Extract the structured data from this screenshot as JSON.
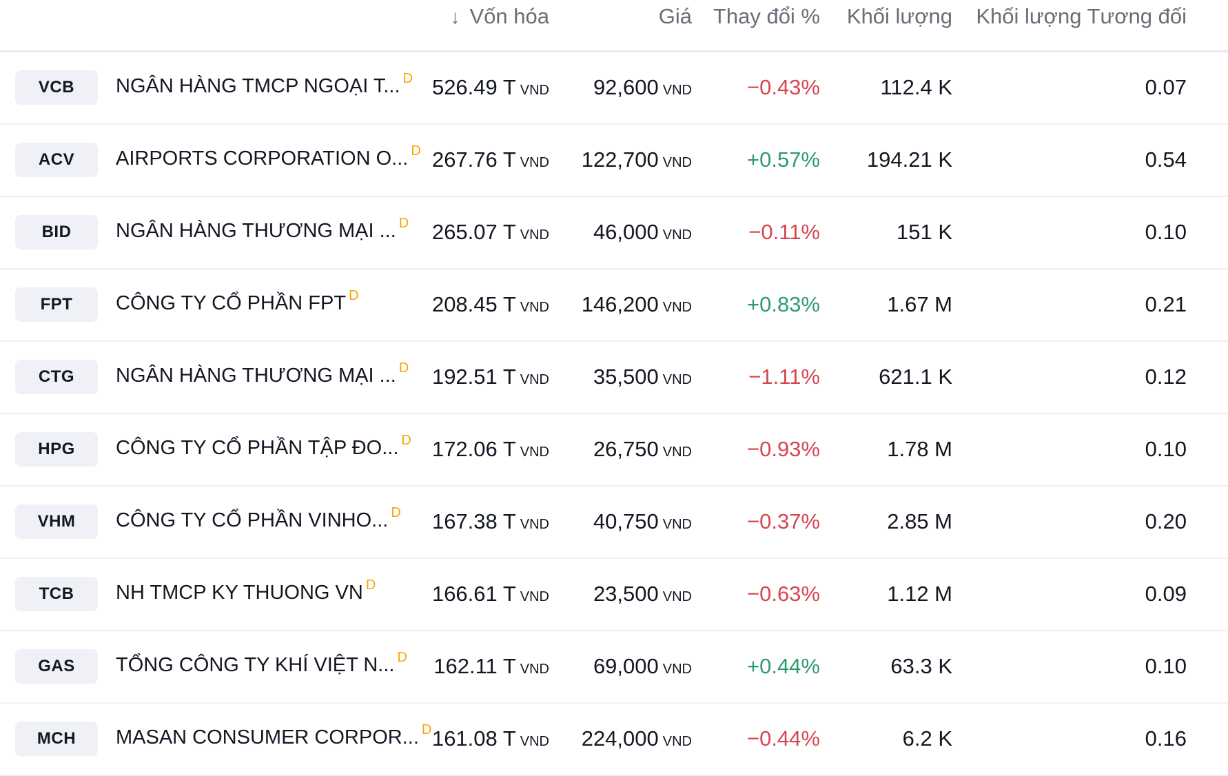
{
  "header": {
    "sort_arrow": "↓",
    "market_cap": "Vốn hóa",
    "price": "Giá",
    "change_pct": "Thay đổi %",
    "volume": "Khối lượng",
    "rel_volume": "Khối lượng Tương đối"
  },
  "currency": "VND",
  "flag_mark": "D",
  "rows": [
    {
      "ticker": "VCB",
      "name": "NGÂN HÀNG TMCP NGOẠI T...",
      "cap": "526.49 T",
      "price": "92,600",
      "change": "−0.43%",
      "dir": "neg",
      "volume": "112.4 K",
      "rel": "0.07"
    },
    {
      "ticker": "ACV",
      "name": "AIRPORTS CORPORATION O...",
      "cap": "267.76 T",
      "price": "122,700",
      "change": "+0.57%",
      "dir": "pos",
      "volume": "194.21 K",
      "rel": "0.54"
    },
    {
      "ticker": "BID",
      "name": "NGÂN HÀNG THƯƠNG MẠI ...",
      "cap": "265.07 T",
      "price": "46,000",
      "change": "−0.11%",
      "dir": "neg",
      "volume": "151 K",
      "rel": "0.10"
    },
    {
      "ticker": "FPT",
      "name": "CÔNG TY CỔ PHẦN FPT",
      "cap": "208.45 T",
      "price": "146,200",
      "change": "+0.83%",
      "dir": "pos",
      "volume": "1.67 M",
      "rel": "0.21"
    },
    {
      "ticker": "CTG",
      "name": "NGÂN HÀNG THƯƠNG MẠI ...",
      "cap": "192.51 T",
      "price": "35,500",
      "change": "−1.11%",
      "dir": "neg",
      "volume": "621.1 K",
      "rel": "0.12"
    },
    {
      "ticker": "HPG",
      "name": "CÔNG TY CỔ PHẦN TẬP ĐO...",
      "cap": "172.06 T",
      "price": "26,750",
      "change": "−0.93%",
      "dir": "neg",
      "volume": "1.78 M",
      "rel": "0.10"
    },
    {
      "ticker": "VHM",
      "name": "CÔNG TY CỔ PHẦN VINHO...",
      "cap": "167.38 T",
      "price": "40,750",
      "change": "−0.37%",
      "dir": "neg",
      "volume": "2.85 M",
      "rel": "0.20"
    },
    {
      "ticker": "TCB",
      "name": "NH TMCP KY THUONG VN",
      "cap": "166.61 T",
      "price": "23,500",
      "change": "−0.63%",
      "dir": "neg",
      "volume": "1.12 M",
      "rel": "0.09"
    },
    {
      "ticker": "GAS",
      "name": "TỔNG CÔNG TY KHÍ VIỆT N...",
      "cap": "162.11 T",
      "price": "69,000",
      "change": "+0.44%",
      "dir": "pos",
      "volume": "63.3 K",
      "rel": "0.10"
    },
    {
      "ticker": "MCH",
      "name": "MASAN CONSUMER CORPOR...",
      "cap": "161.08 T",
      "price": "224,000",
      "change": "−0.44%",
      "dir": "neg",
      "volume": "6.2 K",
      "rel": "0.16"
    }
  ]
}
